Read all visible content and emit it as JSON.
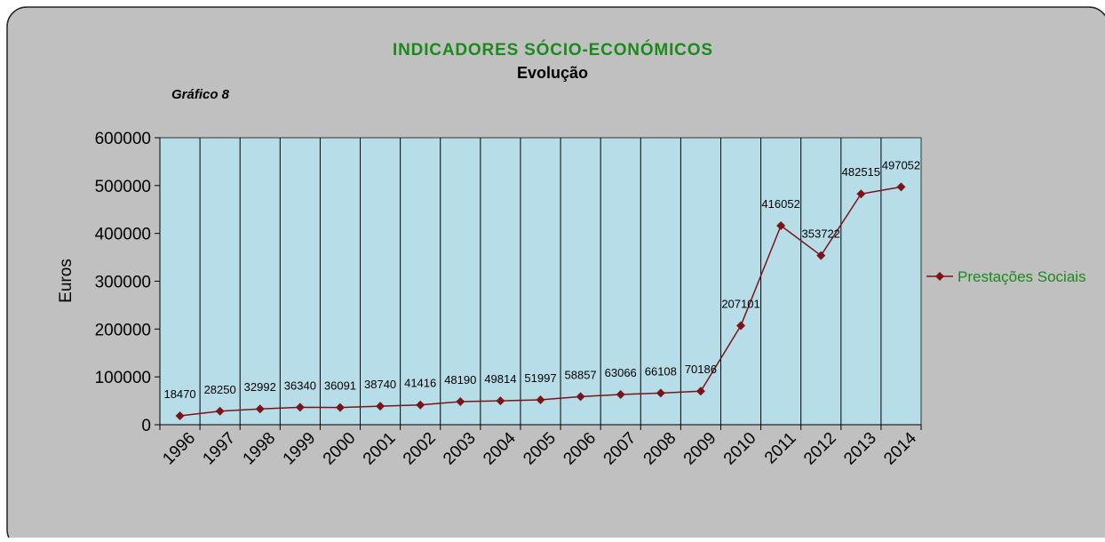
{
  "chart_data": {
    "type": "line",
    "title": "INDICADORES SÓCIO-ECONÓMICOS",
    "subtitle": "Evolução",
    "annotation": "Gráfico 8",
    "y_label": "Euros",
    "categories": [
      "1996",
      "1997",
      "1998",
      "1999",
      "2000",
      "2001",
      "2002",
      "2003",
      "2004",
      "2005",
      "2006",
      "2007",
      "2008",
      "2009",
      "2010",
      "2011",
      "2012",
      "2013",
      "2014"
    ],
    "series": [
      {
        "name": "Prestações Sociais",
        "color": "#7b1418",
        "values": [
          18470,
          28250,
          32992,
          36340,
          36091,
          38740,
          41416,
          48190,
          49814,
          51997,
          58857,
          63066,
          66108,
          70186,
          207101,
          416052,
          353722,
          482515,
          497052
        ]
      }
    ],
    "ylim": [
      0,
      600000
    ],
    "yticks": [
      0,
      100000,
      200000,
      300000,
      400000,
      500000,
      600000
    ],
    "grid": true,
    "legend": "right"
  }
}
